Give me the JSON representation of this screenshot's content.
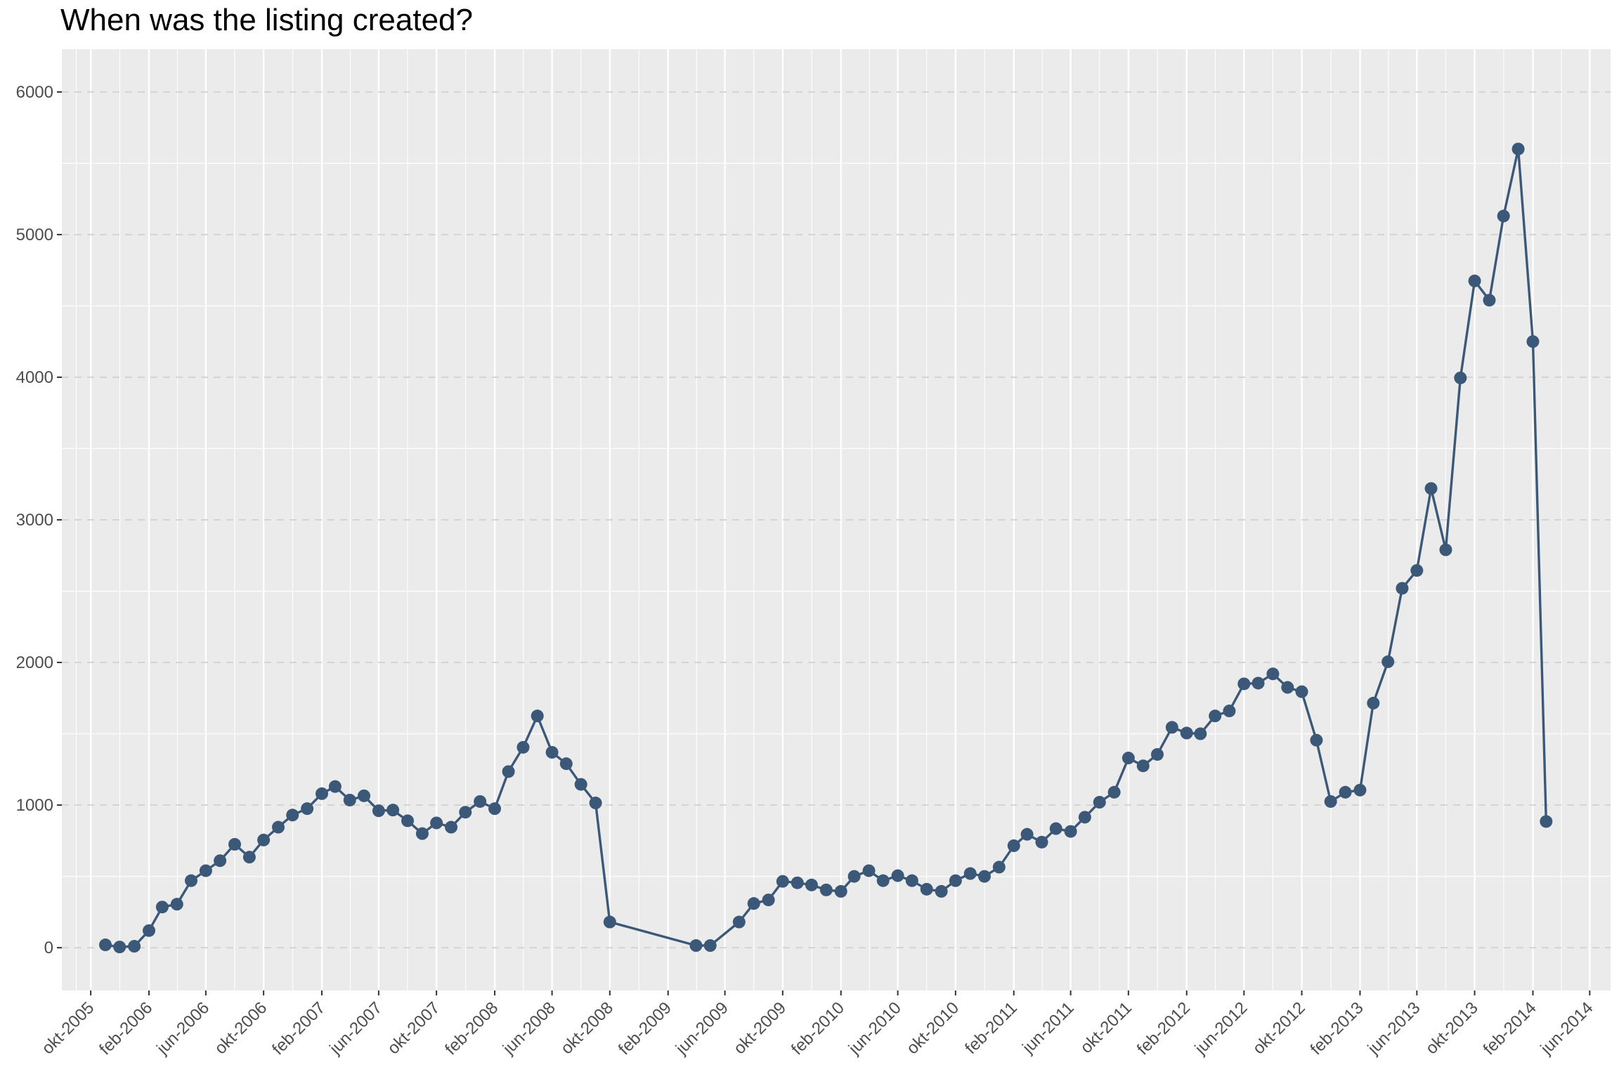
{
  "chart_data": {
    "type": "line",
    "title": "When was the listing created?",
    "xlabel": "",
    "ylabel": "",
    "ylim": [
      -300,
      6300
    ],
    "y_ticks": [
      0,
      1000,
      2000,
      3000,
      4000,
      5000,
      6000
    ],
    "xlim": [
      "2005-08-01",
      "2014-07-15"
    ],
    "x_ticks": [
      {
        "date": "2005-10-01",
        "label": "okt-2005"
      },
      {
        "date": "2006-02-01",
        "label": "feb-2006"
      },
      {
        "date": "2006-06-01",
        "label": "jun-2006"
      },
      {
        "date": "2006-10-01",
        "label": "okt-2006"
      },
      {
        "date": "2007-02-01",
        "label": "feb-2007"
      },
      {
        "date": "2007-06-01",
        "label": "jun-2007"
      },
      {
        "date": "2007-10-01",
        "label": "okt-2007"
      },
      {
        "date": "2008-02-01",
        "label": "feb-2008"
      },
      {
        "date": "2008-06-01",
        "label": "jun-2008"
      },
      {
        "date": "2008-10-01",
        "label": "okt-2008"
      },
      {
        "date": "2009-02-01",
        "label": "feb-2009"
      },
      {
        "date": "2009-06-01",
        "label": "jun-2009"
      },
      {
        "date": "2009-10-01",
        "label": "okt-2009"
      },
      {
        "date": "2010-02-01",
        "label": "feb-2010"
      },
      {
        "date": "2010-06-01",
        "label": "jun-2010"
      },
      {
        "date": "2010-10-01",
        "label": "okt-2010"
      },
      {
        "date": "2011-02-01",
        "label": "feb-2011"
      },
      {
        "date": "2011-06-01",
        "label": "jun-2011"
      },
      {
        "date": "2011-10-01",
        "label": "okt-2011"
      },
      {
        "date": "2012-02-01",
        "label": "feb-2012"
      },
      {
        "date": "2012-06-01",
        "label": "jun-2012"
      },
      {
        "date": "2012-10-01",
        "label": "okt-2012"
      },
      {
        "date": "2013-02-01",
        "label": "feb-2013"
      },
      {
        "date": "2013-06-01",
        "label": "jun-2013"
      },
      {
        "date": "2013-10-01",
        "label": "okt-2013"
      },
      {
        "date": "2014-02-01",
        "label": "feb-2014"
      },
      {
        "date": "2014-06-01",
        "label": "jun-2014"
      }
    ],
    "grid": true,
    "series_color": "#3b5878",
    "panel_color": "#ebebeb",
    "points": [
      {
        "x": "2005-11-01",
        "y": 20
      },
      {
        "x": "2005-12-01",
        "y": 5
      },
      {
        "x": "2006-01-01",
        "y": 10
      },
      {
        "x": "2006-02-01",
        "y": 120
      },
      {
        "x": "2006-03-01",
        "y": 285
      },
      {
        "x": "2006-04-01",
        "y": 305
      },
      {
        "x": "2006-05-01",
        "y": 470
      },
      {
        "x": "2006-06-01",
        "y": 540
      },
      {
        "x": "2006-07-01",
        "y": 610
      },
      {
        "x": "2006-08-01",
        "y": 725
      },
      {
        "x": "2006-09-01",
        "y": 635
      },
      {
        "x": "2006-10-01",
        "y": 755
      },
      {
        "x": "2006-11-01",
        "y": 845
      },
      {
        "x": "2006-12-01",
        "y": 930
      },
      {
        "x": "2007-01-01",
        "y": 975
      },
      {
        "x": "2007-02-01",
        "y": 1080
      },
      {
        "x": "2007-03-01",
        "y": 1130
      },
      {
        "x": "2007-04-01",
        "y": 1035
      },
      {
        "x": "2007-05-01",
        "y": 1065
      },
      {
        "x": "2007-06-01",
        "y": 960
      },
      {
        "x": "2007-07-01",
        "y": 965
      },
      {
        "x": "2007-08-01",
        "y": 890
      },
      {
        "x": "2007-09-01",
        "y": 800
      },
      {
        "x": "2007-10-01",
        "y": 875
      },
      {
        "x": "2007-11-01",
        "y": 845
      },
      {
        "x": "2007-12-01",
        "y": 950
      },
      {
        "x": "2008-01-01",
        "y": 1025
      },
      {
        "x": "2008-02-01",
        "y": 975
      },
      {
        "x": "2008-03-01",
        "y": 1235
      },
      {
        "x": "2008-04-01",
        "y": 1405
      },
      {
        "x": "2008-05-01",
        "y": 1625
      },
      {
        "x": "2008-06-01",
        "y": 1370
      },
      {
        "x": "2008-07-01",
        "y": 1290
      },
      {
        "x": "2008-08-01",
        "y": 1145
      },
      {
        "x": "2008-09-01",
        "y": 1015
      },
      {
        "x": "2008-10-01",
        "y": 180
      },
      {
        "x": "2009-04-01",
        "y": 15
      },
      {
        "x": "2009-05-01",
        "y": 15
      },
      {
        "x": "2009-07-01",
        "y": 180
      },
      {
        "x": "2009-08-01",
        "y": 310
      },
      {
        "x": "2009-09-01",
        "y": 335
      },
      {
        "x": "2009-10-01",
        "y": 465
      },
      {
        "x": "2009-11-01",
        "y": 455
      },
      {
        "x": "2009-12-01",
        "y": 440
      },
      {
        "x": "2010-01-01",
        "y": 405
      },
      {
        "x": "2010-02-01",
        "y": 395
      },
      {
        "x": "2010-03-01",
        "y": 500
      },
      {
        "x": "2010-04-01",
        "y": 540
      },
      {
        "x": "2010-05-01",
        "y": 470
      },
      {
        "x": "2010-06-01",
        "y": 505
      },
      {
        "x": "2010-07-01",
        "y": 470
      },
      {
        "x": "2010-08-01",
        "y": 410
      },
      {
        "x": "2010-09-01",
        "y": 395
      },
      {
        "x": "2010-10-01",
        "y": 470
      },
      {
        "x": "2010-11-01",
        "y": 520
      },
      {
        "x": "2010-12-01",
        "y": 500
      },
      {
        "x": "2011-01-01",
        "y": 565
      },
      {
        "x": "2011-02-01",
        "y": 715
      },
      {
        "x": "2011-03-01",
        "y": 795
      },
      {
        "x": "2011-04-01",
        "y": 740
      },
      {
        "x": "2011-05-01",
        "y": 835
      },
      {
        "x": "2011-06-01",
        "y": 815
      },
      {
        "x": "2011-07-01",
        "y": 915
      },
      {
        "x": "2011-08-01",
        "y": 1020
      },
      {
        "x": "2011-09-01",
        "y": 1090
      },
      {
        "x": "2011-10-01",
        "y": 1330
      },
      {
        "x": "2011-11-01",
        "y": 1275
      },
      {
        "x": "2011-12-01",
        "y": 1355
      },
      {
        "x": "2012-01-01",
        "y": 1545
      },
      {
        "x": "2012-02-01",
        "y": 1505
      },
      {
        "x": "2012-03-01",
        "y": 1500
      },
      {
        "x": "2012-04-01",
        "y": 1625
      },
      {
        "x": "2012-05-01",
        "y": 1660
      },
      {
        "x": "2012-06-01",
        "y": 1850
      },
      {
        "x": "2012-07-01",
        "y": 1855
      },
      {
        "x": "2012-08-01",
        "y": 1920
      },
      {
        "x": "2012-09-01",
        "y": 1825
      },
      {
        "x": "2012-10-01",
        "y": 1795
      },
      {
        "x": "2012-11-01",
        "y": 1455
      },
      {
        "x": "2012-12-01",
        "y": 1025
      },
      {
        "x": "2013-01-01",
        "y": 1090
      },
      {
        "x": "2013-02-01",
        "y": 1105
      },
      {
        "x": "2013-03-01",
        "y": 1715
      },
      {
        "x": "2013-04-01",
        "y": 2005
      },
      {
        "x": "2013-05-01",
        "y": 2520
      },
      {
        "x": "2013-06-01",
        "y": 2645
      },
      {
        "x": "2013-07-01",
        "y": 3220
      },
      {
        "x": "2013-08-01",
        "y": 2790
      },
      {
        "x": "2013-09-01",
        "y": 3995
      },
      {
        "x": "2013-10-01",
        "y": 4675
      },
      {
        "x": "2013-11-01",
        "y": 4540
      },
      {
        "x": "2013-12-01",
        "y": 5130
      },
      {
        "x": "2014-01-01",
        "y": 5600
      },
      {
        "x": "2014-02-01",
        "y": 4250
      },
      {
        "x": "2014-03-01",
        "y": 885
      }
    ]
  }
}
